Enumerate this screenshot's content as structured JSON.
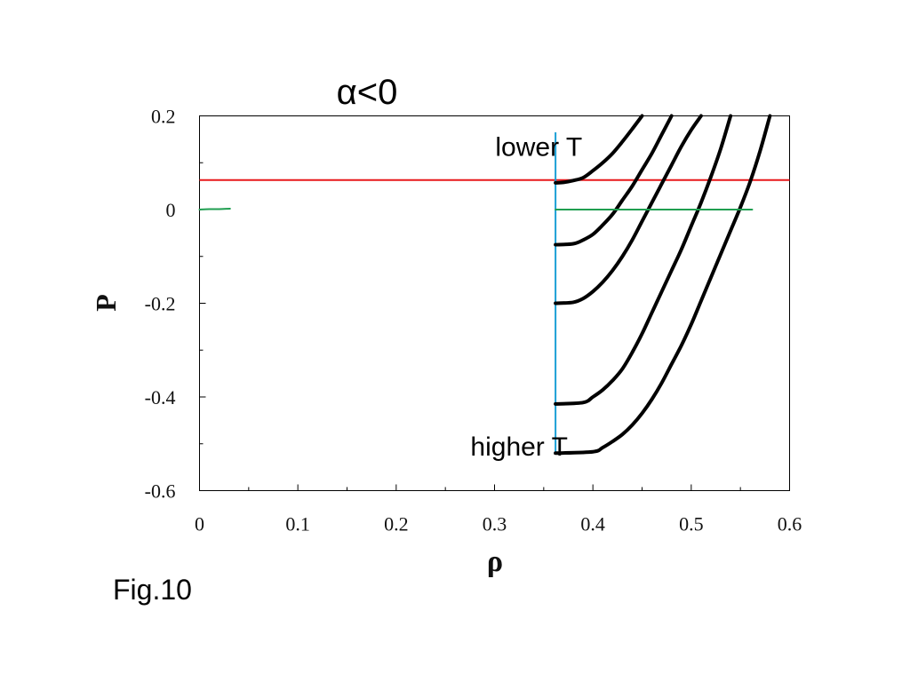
{
  "caption": "Fig.10",
  "chart_data": {
    "type": "line",
    "title": "α<0",
    "xlabel": "ρ",
    "ylabel": "P",
    "xlim": [
      0,
      0.6
    ],
    "ylim": [
      -0.6,
      0.2
    ],
    "xticks": [
      0,
      0.1,
      0.2,
      0.3,
      0.4,
      0.5,
      0.6
    ],
    "xtick_labels": [
      "0",
      "0.1",
      "0.2",
      "0.3",
      "0.4",
      "0.5",
      "0.6"
    ],
    "yticks": [
      0.2,
      0,
      -0.2,
      -0.4,
      -0.6
    ],
    "ytick_labels": [
      "0.2",
      "0",
      "-0.2",
      "-0.4",
      "-0.6"
    ],
    "grid": false,
    "annotations": [
      {
        "text": "lower T",
        "x": 0.345,
        "y": 0.115
      },
      {
        "text": "higher T",
        "x": 0.325,
        "y": -0.525
      }
    ],
    "hlines": [
      {
        "y": 0.063,
        "x_from": 0.0,
        "x_to": 0.6,
        "color": "#e8191c"
      }
    ],
    "vlines": [
      {
        "x": 0.362,
        "y_from": -0.52,
        "y_to": 0.165,
        "color": "#1a9fd6"
      }
    ],
    "series": [
      {
        "color": "#000000",
        "x": [
          0.362,
          0.37,
          0.38,
          0.39,
          0.4,
          0.41,
          0.42,
          0.43,
          0.44,
          0.45
        ],
        "y": [
          0.057,
          0.058,
          0.062,
          0.068,
          0.083,
          0.1,
          0.12,
          0.145,
          0.172,
          0.2
        ]
      },
      {
        "color": "#000000",
        "x": [
          0.362,
          0.38,
          0.39,
          0.4,
          0.41,
          0.42,
          0.43,
          0.44,
          0.45,
          0.46,
          0.47,
          0.48
        ],
        "y": [
          -0.075,
          -0.073,
          -0.065,
          -0.053,
          -0.033,
          -0.01,
          0.02,
          0.05,
          0.085,
          0.12,
          0.16,
          0.2
        ]
      },
      {
        "color": "#000000",
        "x": [
          0.362,
          0.38,
          0.39,
          0.4,
          0.41,
          0.42,
          0.43,
          0.44,
          0.45,
          0.46,
          0.47,
          0.48,
          0.49,
          0.5,
          0.51
        ],
        "y": [
          -0.2,
          -0.198,
          -0.19,
          -0.175,
          -0.155,
          -0.13,
          -0.1,
          -0.065,
          -0.025,
          0.015,
          0.055,
          0.095,
          0.135,
          0.17,
          0.2
        ]
      },
      {
        "color": "#000000",
        "x": [
          0.362,
          0.39,
          0.4,
          0.41,
          0.42,
          0.43,
          0.44,
          0.45,
          0.46,
          0.47,
          0.48,
          0.49,
          0.5,
          0.51,
          0.52,
          0.53,
          0.54
        ],
        "y": [
          -0.415,
          -0.412,
          -0.4,
          -0.385,
          -0.365,
          -0.34,
          -0.305,
          -0.265,
          -0.22,
          -0.175,
          -0.13,
          -0.085,
          -0.035,
          0.015,
          0.07,
          0.13,
          0.2
        ]
      },
      {
        "color": "#000000",
        "x": [
          0.362,
          0.4,
          0.41,
          0.42,
          0.43,
          0.44,
          0.45,
          0.46,
          0.47,
          0.48,
          0.49,
          0.5,
          0.51,
          0.52,
          0.53,
          0.54,
          0.55,
          0.56,
          0.57,
          0.58
        ],
        "y": [
          -0.52,
          -0.517,
          -0.508,
          -0.495,
          -0.48,
          -0.46,
          -0.435,
          -0.405,
          -0.37,
          -0.33,
          -0.29,
          -0.245,
          -0.195,
          -0.145,
          -0.095,
          -0.045,
          0.005,
          0.06,
          0.125,
          0.2
        ]
      },
      {
        "color": "#1f9e50",
        "x": [
          0.0,
          0.01,
          0.02,
          0.031
        ],
        "y": [
          0.0,
          0.001,
          0.001,
          0.002
        ]
      },
      {
        "color": "#1f9e50",
        "x": [
          0.362,
          0.45,
          0.5,
          0.562
        ],
        "y": [
          0.0,
          0.0,
          0.0,
          0.0
        ]
      }
    ]
  }
}
